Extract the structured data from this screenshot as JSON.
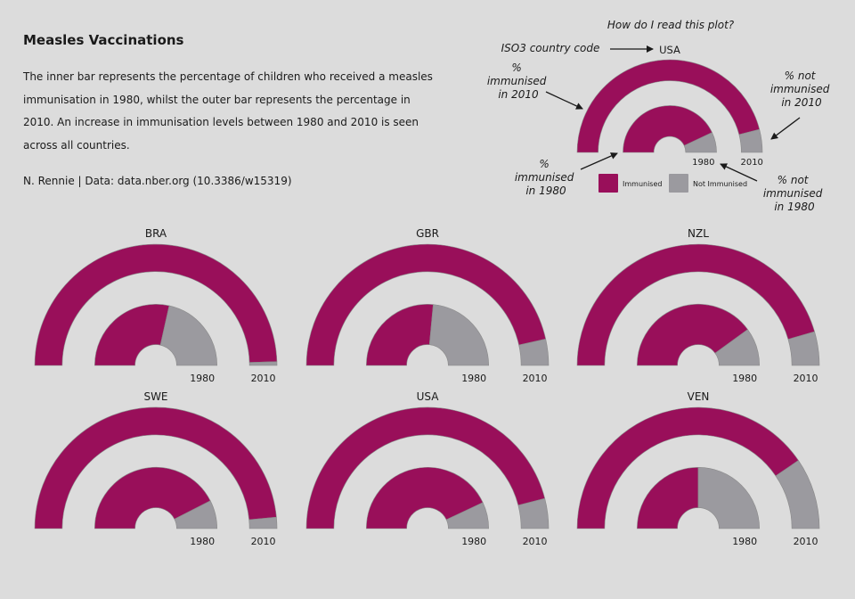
{
  "title": "Measles Vaccinations",
  "description": "The inner bar represents the percentage of children who received a measles immunisation in 1980, whilst the outer bar represents the percentage in 2010. An increase in immunisation levels between 1980 and 2010 is seen across all countries.",
  "credit": "N. Rennie | Data: data.nber.org (10.3386/w15319)",
  "colors": {
    "immunised": "#990F5A",
    "not_immunised": "#9B9A9F",
    "background": "#dcdcdc"
  },
  "guide": {
    "heading": "How do I read this plot?",
    "country": "USA",
    "iso_label": "ISO3 country code",
    "immunised_2010_label": [
      "%",
      "immunised",
      "in 2010"
    ],
    "not_immunised_2010_label": [
      "% not",
      "immunised",
      "in 2010"
    ],
    "immunised_1980_label": [
      "%",
      "immunised",
      "in 1980"
    ],
    "not_immunised_1980_label": [
      "% not",
      "immunised",
      "in 1980"
    ],
    "year_inner": "1980",
    "year_outer": "2010",
    "legend": {
      "immunised": "Immunised",
      "not_immunised": "Not Immunised"
    }
  },
  "chart_data": {
    "type": "semicircular-stacked-bar",
    "unit": "% of children immunised against measles",
    "inner_year": "1980",
    "outer_year": "2010",
    "categories": [
      "Immunised",
      "Not Immunised"
    ],
    "countries": [
      {
        "code": "BRA",
        "immunised_1980": 57,
        "immunised_2010": 99
      },
      {
        "code": "GBR",
        "immunised_1980": 53,
        "immunised_2010": 93
      },
      {
        "code": "NZL",
        "immunised_1980": 80,
        "immunised_2010": 91
      },
      {
        "code": "SWE",
        "immunised_1980": 85,
        "immunised_2010": 97
      },
      {
        "code": "USA",
        "immunised_1980": 86,
        "immunised_2010": 92
      },
      {
        "code": "VEN",
        "immunised_1980": 50,
        "immunised_2010": 81
      }
    ]
  }
}
